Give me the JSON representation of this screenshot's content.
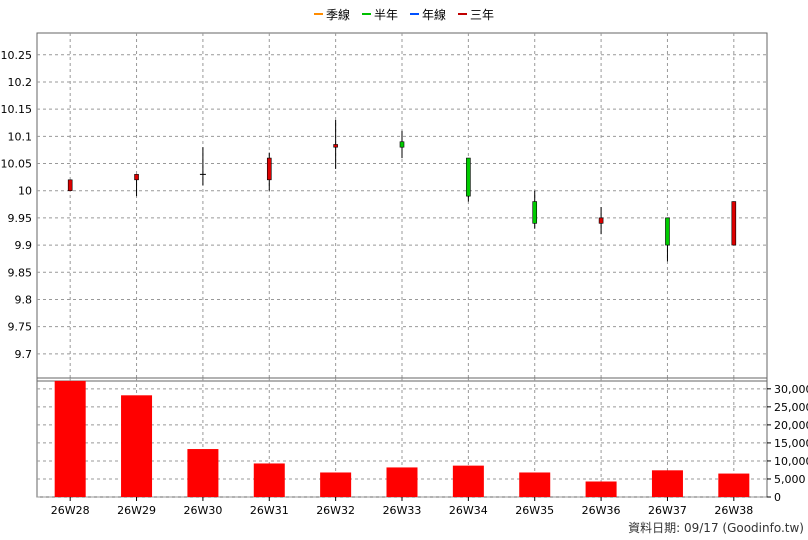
{
  "legend": [
    {
      "label": "季線",
      "color": "#ff8c00"
    },
    {
      "label": "半年",
      "color": "#00c000"
    },
    {
      "label": "年線",
      "color": "#0050ff"
    },
    {
      "label": "三年",
      "color": "#c00000"
    }
  ],
  "credit": "資料日期: 09/17  (Goodinfo.tw)",
  "colors": {
    "up": "#dd0000",
    "down": "#00cc00",
    "volume": "#ff0000",
    "grid": "#999999"
  },
  "chart_data": [
    {
      "type": "candlestick",
      "ylim": [
        9.65,
        10.29
      ],
      "yticks": [
        "10.25",
        "10.2",
        "10.15",
        "10.1",
        "10.05",
        "10",
        "9.95",
        "9.9",
        "9.85",
        "9.8",
        "9.75",
        "9.7"
      ],
      "categories": [
        "26W28",
        "26W29",
        "26W30",
        "26W31",
        "26W32",
        "26W33",
        "26W34",
        "26W35",
        "26W36",
        "26W37",
        "26W38"
      ],
      "ohlc": [
        {
          "open": 10.0,
          "high": 10.02,
          "low": 10.0,
          "close": 10.02
        },
        {
          "open": 10.02,
          "high": 10.03,
          "low": 9.99,
          "close": 10.03
        },
        {
          "open": 10.03,
          "high": 10.08,
          "low": 10.01,
          "close": 10.03
        },
        {
          "open": 10.02,
          "high": 10.07,
          "low": 10.0,
          "close": 10.06
        },
        {
          "open": 10.08,
          "high": 10.13,
          "low": 10.04,
          "close": 10.085
        },
        {
          "open": 10.09,
          "high": 10.11,
          "low": 10.06,
          "close": 10.08
        },
        {
          "open": 10.06,
          "high": 10.06,
          "low": 9.98,
          "close": 9.99
        },
        {
          "open": 9.98,
          "high": 10.0,
          "low": 9.93,
          "close": 9.94
        },
        {
          "open": 9.94,
          "high": 9.97,
          "low": 9.92,
          "close": 9.95
        },
        {
          "open": 9.95,
          "high": 9.95,
          "low": 9.87,
          "close": 9.9
        },
        {
          "open": 9.9,
          "high": 9.98,
          "low": 9.9,
          "close": 9.98
        }
      ]
    },
    {
      "type": "bar",
      "ylim": [
        0,
        33000
      ],
      "yticks": [
        "30,000",
        "25,000",
        "20,000",
        "15,000",
        "10,000",
        "5,000",
        "0"
      ],
      "categories": [
        "26W28",
        "26W29",
        "26W30",
        "26W31",
        "26W32",
        "26W33",
        "26W34",
        "26W35",
        "26W36",
        "26W37",
        "26W38"
      ],
      "values": [
        32200,
        28200,
        13300,
        9300,
        6800,
        8200,
        8700,
        6800,
        4300,
        7400,
        6500
      ]
    }
  ]
}
